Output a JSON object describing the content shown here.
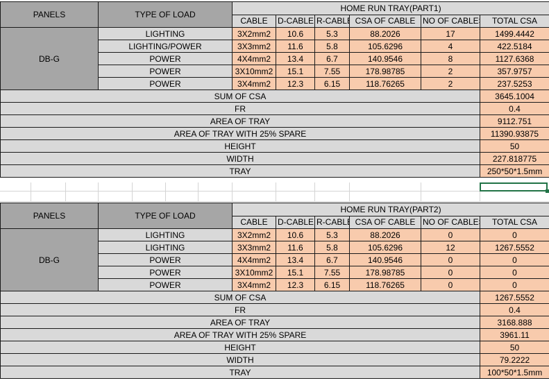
{
  "headers": {
    "panels": "PANELS",
    "type_of_load": "TYPE OF LOAD",
    "cable": "CABLE",
    "d_cable": "D-CABLE",
    "r_cable": "R-CABLE",
    "csa_of_cable": "CSA OF CABLE",
    "no_of_cables": "NO OF CABLES",
    "total_csa": "TOTAL CSA"
  },
  "tables": [
    {
      "title": "HOME RUN TRAY(PART1)",
      "panel": "DB-G",
      "rows": [
        {
          "load": "LIGHTING",
          "cable": "3X2mm2",
          "d": "10.6",
          "r": "5.3",
          "csa": "88.2026",
          "n": "17",
          "total": "1499.4442"
        },
        {
          "load": "LIGHTING/POWER",
          "cable": "3X3mm2",
          "d": "11.6",
          "r": "5.8",
          "csa": "105.6296",
          "n": "4",
          "total": "422.5184"
        },
        {
          "load": "POWER",
          "cable": "4X4mm2",
          "d": "13.4",
          "r": "6.7",
          "csa": "140.9546",
          "n": "8",
          "total": "1127.6368"
        },
        {
          "load": "POWER",
          "cable": "3X10mm2",
          "d": "15.1",
          "r": "7.55",
          "csa": "178.98785",
          "n": "2",
          "total": "357.9757"
        },
        {
          "load": "POWER",
          "cable": "3X4mm2",
          "d": "12.3",
          "r": "6.15",
          "csa": "118.76265",
          "n": "2",
          "total": "237.5253"
        }
      ],
      "summary": [
        {
          "label": "SUM OF CSA",
          "value": "3645.1004"
        },
        {
          "label": "FR",
          "value": "0.4"
        },
        {
          "label": "AREA OF TRAY",
          "value": "9112.751"
        },
        {
          "label": "AREA OF TRAY WITH 25% SPARE",
          "value": "11390.93875"
        },
        {
          "label": "HEIGHT",
          "value": "50"
        },
        {
          "label": "WIDTH",
          "value": "227.818775"
        },
        {
          "label": "TRAY",
          "value": "250*50*1.5mm"
        }
      ]
    },
    {
      "title": "HOME RUN TRAY(PART2)",
      "panel": "DB-G",
      "rows": [
        {
          "load": "LIGHTING",
          "cable": "3X2mm2",
          "d": "10.6",
          "r": "5.3",
          "csa": "88.2026",
          "n": "0",
          "total": "0"
        },
        {
          "load": "LIGHTING",
          "cable": "3X3mm2",
          "d": "11.6",
          "r": "5.8",
          "csa": "105.6296",
          "n": "12",
          "total": "1267.5552"
        },
        {
          "load": "POWER",
          "cable": "4X4mm2",
          "d": "13.4",
          "r": "6.7",
          "csa": "140.9546",
          "n": "0",
          "total": "0"
        },
        {
          "load": "POWER",
          "cable": "3X10mm2",
          "d": "15.1",
          "r": "7.55",
          "csa": "178.98785",
          "n": "0",
          "total": "0"
        },
        {
          "load": "POWER",
          "cable": "3X4mm2",
          "d": "12.3",
          "r": "6.15",
          "csa": "118.76265",
          "n": "0",
          "total": "0"
        }
      ],
      "summary": [
        {
          "label": "SUM OF CSA",
          "value": "1267.5552"
        },
        {
          "label": "FR",
          "value": "0.4"
        },
        {
          "label": "AREA OF TRAY",
          "value": "3168.888"
        },
        {
          "label": "AREA OF TRAY WITH 25% SPARE",
          "value": "3961.11"
        },
        {
          "label": "HEIGHT",
          "value": "50"
        },
        {
          "label": "WIDTH",
          "value": "79.2222"
        },
        {
          "label": "TRAY",
          "value": "100*50*1.5mm"
        }
      ]
    }
  ]
}
